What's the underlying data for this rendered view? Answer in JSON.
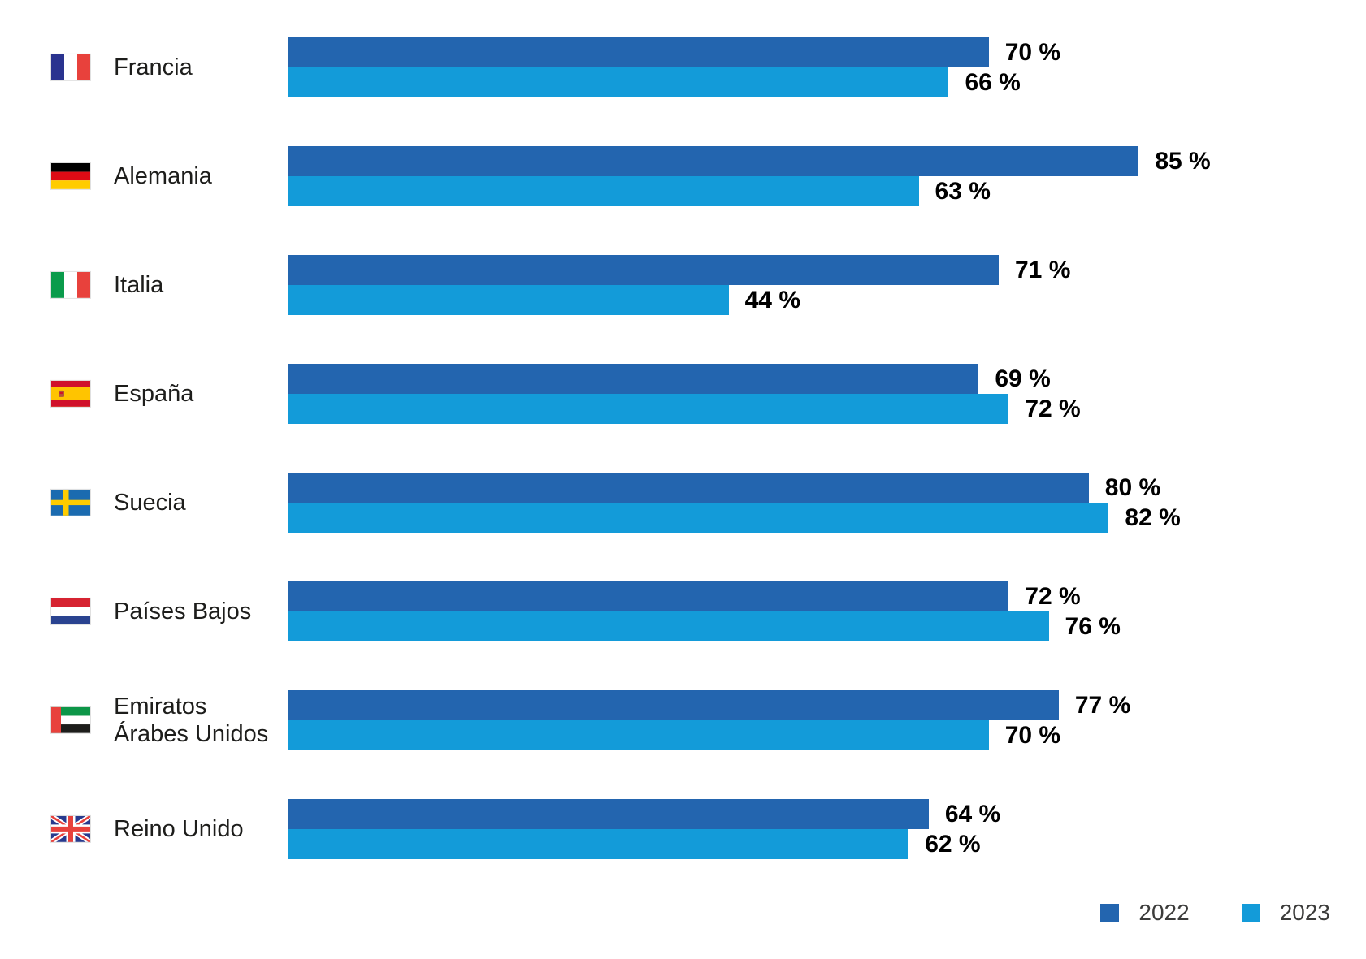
{
  "chart_data": {
    "type": "bar",
    "orientation": "horizontal",
    "categories": [
      "Francia",
      "Alemania",
      "Italia",
      "España",
      "Suecia",
      "Países Bajos",
      "Emiratos Árabes Unidos",
      "Reino Unido"
    ],
    "flags": [
      "france",
      "germany",
      "italy",
      "spain",
      "sweden",
      "netherlands",
      "uae",
      "uk"
    ],
    "series": [
      {
        "name": "2022",
        "color": "#2365AF",
        "values": [
          70,
          85,
          71,
          69,
          80,
          72,
          77,
          64
        ]
      },
      {
        "name": "2023",
        "color": "#139BD9",
        "values": [
          66,
          63,
          44,
          72,
          82,
          76,
          70,
          62
        ]
      }
    ],
    "value_suffix": " %",
    "xlim": [
      0,
      100
    ],
    "grid": false,
    "legend_position": "bottom-right"
  },
  "legend": {
    "items": [
      {
        "label": "2022",
        "color": "#2365AF"
      },
      {
        "label": "2023",
        "color": "#139BD9"
      }
    ]
  },
  "flag_icon_names": [
    "france-flag-icon",
    "germany-flag-icon",
    "italy-flag-icon",
    "spain-flag-icon",
    "sweden-flag-icon",
    "netherlands-flag-icon",
    "uae-flag-icon",
    "uk-flag-icon"
  ]
}
